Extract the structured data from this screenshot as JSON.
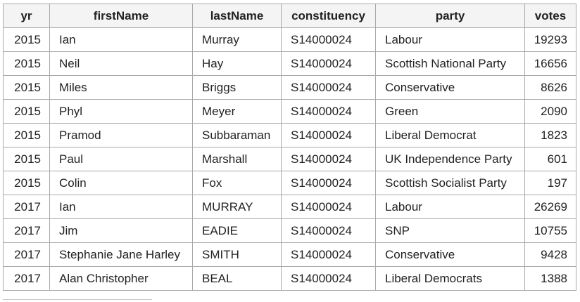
{
  "table": {
    "headers": [
      "yr",
      "firstName",
      "lastName",
      "constituency",
      "party",
      "votes"
    ],
    "rows": [
      [
        "2015",
        "Ian",
        "Murray",
        "S14000024",
        "Labour",
        "19293"
      ],
      [
        "2015",
        "Neil",
        "Hay",
        "S14000024",
        "Scottish National Party",
        "16656"
      ],
      [
        "2015",
        "Miles",
        "Briggs",
        "S14000024",
        "Conservative",
        "8626"
      ],
      [
        "2015",
        "Phyl",
        "Meyer",
        "S14000024",
        "Green",
        "2090"
      ],
      [
        "2015",
        "Pramod",
        "Subbaraman",
        "S14000024",
        "Liberal Democrat",
        "1823"
      ],
      [
        "2015",
        "Paul",
        "Marshall",
        "S14000024",
        "UK Independence Party",
        "601"
      ],
      [
        "2015",
        "Colin",
        "Fox",
        "S14000024",
        "Scottish Socialist Party",
        "197"
      ],
      [
        "2017",
        "Ian",
        "MURRAY",
        "S14000024",
        "Labour",
        "26269"
      ],
      [
        "2017",
        "Jim",
        "EADIE",
        "S14000024",
        "SNP",
        "10755"
      ],
      [
        "2017",
        "Stephanie Jane Harley",
        "SMITH",
        "S14000024",
        "Conservative",
        "9428"
      ],
      [
        "2017",
        "Alan Christopher",
        "BEAL",
        "S14000024",
        "Liberal Democrats",
        "1388"
      ]
    ]
  }
}
